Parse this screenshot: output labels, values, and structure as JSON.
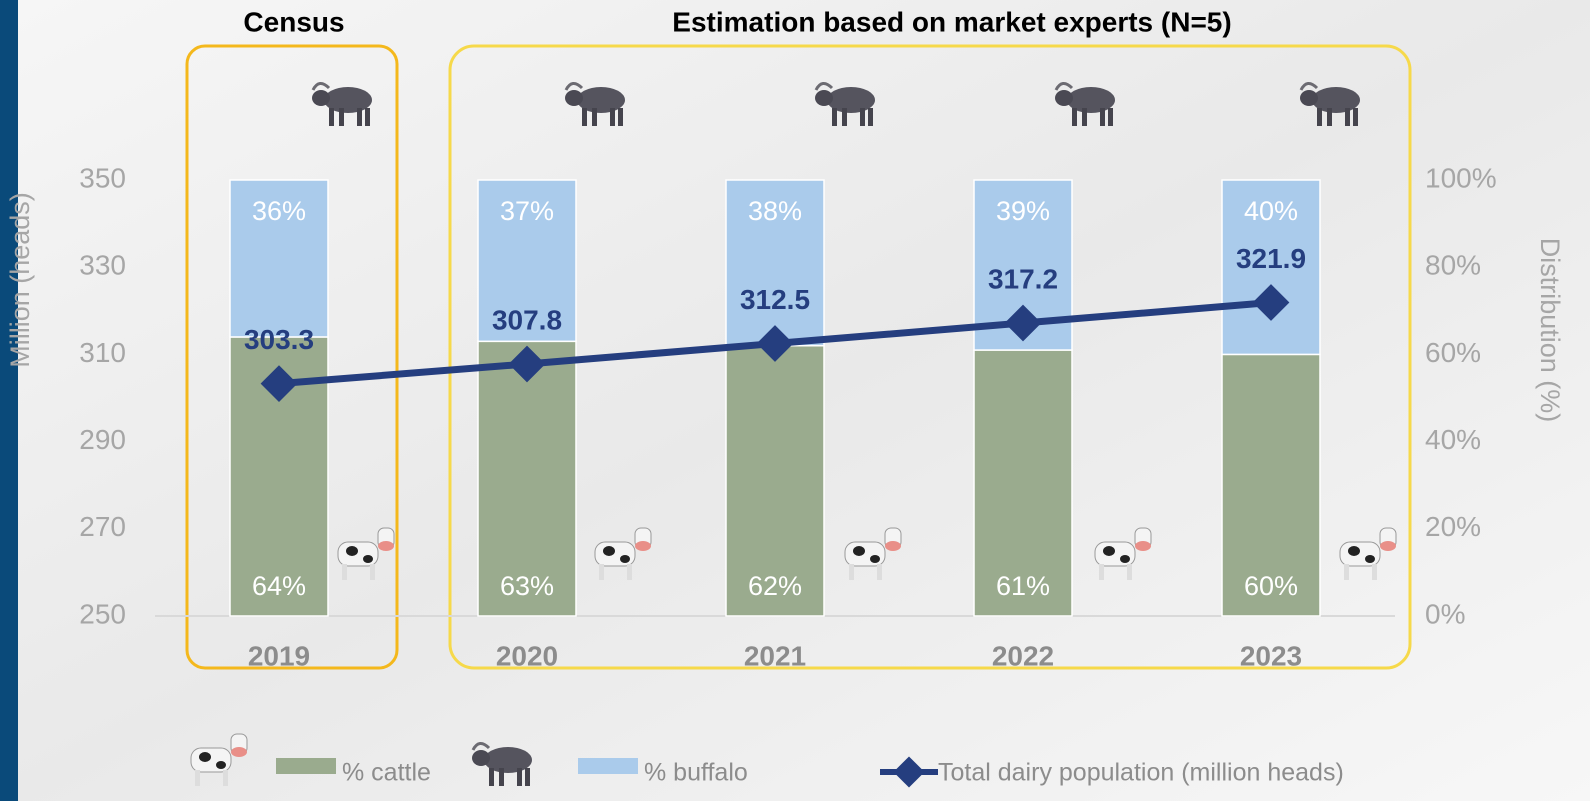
{
  "chart_data": {
    "type": "bar",
    "annotations": [
      "Census",
      "Estimation based on market experts (N=5)"
    ],
    "y_label": "Million (heads)",
    "y2_label": "Distribution (%)",
    "categories": [
      "2019",
      "2020",
      "2021",
      "2022",
      "2023"
    ],
    "series": [
      {
        "name": "% cattle",
        "color": "#9aab8e",
        "axis": "y2",
        "values": [
          64,
          63,
          62,
          61,
          60
        ],
        "value_labels": [
          "64%",
          "63%",
          "62%",
          "61%",
          "60%"
        ]
      },
      {
        "name": "% buffalo",
        "color": "#aacbeb",
        "axis": "y2",
        "values": [
          36,
          37,
          38,
          39,
          40
        ],
        "value_labels": [
          "36%",
          "37%",
          "38%",
          "39%",
          "40%"
        ]
      },
      {
        "name": "Total dairy population (million heads)",
        "type": "line",
        "color": "#253e7f",
        "axis": "y",
        "values": [
          303.3,
          307.8,
          312.5,
          317.2,
          321.9
        ]
      }
    ],
    "ylim": [
      250,
      350
    ],
    "yticks": [
      250,
      270,
      290,
      310,
      330,
      350
    ],
    "y2lim": [
      0,
      100
    ],
    "y2ticks": [
      {
        "value": 0,
        "label": "0%"
      },
      {
        "value": 20,
        "label": "20%"
      },
      {
        "value": 40,
        "label": "40%"
      },
      {
        "value": 60,
        "label": "60%"
      },
      {
        "value": 80,
        "label": "80%"
      },
      {
        "value": 100,
        "label": "100%"
      }
    ],
    "legend": "bottom"
  }
}
